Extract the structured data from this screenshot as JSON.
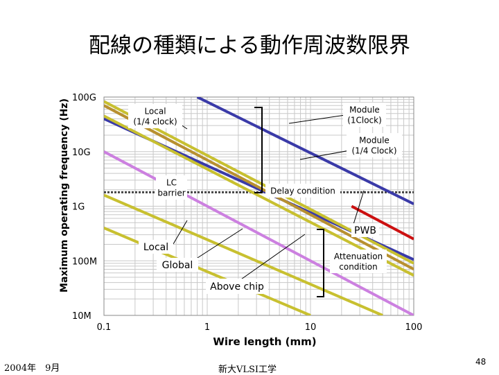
{
  "slide": {
    "title": "配線の種類による動作周波数限界",
    "footer_left": "2004年　9月",
    "footer_center": "新大VLSI工学",
    "page_number": "48"
  },
  "chart_data": {
    "type": "line",
    "title": "",
    "xlabel": "Wire length  (mm)",
    "ylabel": "Maximum operating frequency (Hz)",
    "x_scale": "log",
    "y_scale": "log",
    "xlim": [
      0.1,
      100
    ],
    "ylim": [
      10000000,
      100000000000
    ],
    "x_ticks": [
      {
        "value": 0.1,
        "label": "0.1"
      },
      {
        "value": 1,
        "label": "1"
      },
      {
        "value": 10,
        "label": "10"
      },
      {
        "value": 100,
        "label": "100"
      }
    ],
    "y_ticks": [
      {
        "value": 100000000000,
        "label": "100G"
      },
      {
        "value": 10000000000,
        "label": "10G"
      },
      {
        "value": 1000000000,
        "label": "1G"
      },
      {
        "value": 100000000,
        "label": "100M"
      },
      {
        "value": 10000000,
        "label": "10M"
      }
    ],
    "grid": true,
    "series": [
      {
        "color": "#3a3aa8",
        "points": [
          [
            0.8,
            100000000000
          ],
          [
            100,
            1100000000
          ]
        ]
      },
      {
        "color": "#3a3aa8",
        "points": [
          [
            0.1,
            40000000000
          ],
          [
            100,
            105000000
          ]
        ]
      },
      {
        "color": "#cc1010",
        "points": [
          [
            25,
            1000000000
          ],
          [
            100,
            250000000
          ]
        ]
      },
      {
        "color": "#c8c030",
        "points": [
          [
            0.1,
            83000000000
          ],
          [
            100,
            90000000
          ]
        ]
      },
      {
        "color": "#b89030",
        "points": [
          [
            0.1,
            70000000000
          ],
          [
            100,
            70000000
          ]
        ]
      },
      {
        "color": "#c8c030",
        "points": [
          [
            0.1,
            45000000000
          ],
          [
            100,
            54000000
          ]
        ]
      },
      {
        "color": "#cc80e0",
        "points": [
          [
            0.1,
            10000000000
          ],
          [
            100,
            10000000
          ]
        ]
      },
      {
        "color": "#c8c030",
        "points": [
          [
            0.1,
            1600000000
          ],
          [
            50,
            10000000
          ]
        ]
      },
      {
        "color": "#c8c030",
        "points": [
          [
            0.1,
            400000000
          ],
          [
            10,
            10000000
          ]
        ]
      }
    ],
    "reference_lines": [
      {
        "label": "LC barrier",
        "y": 1800000000,
        "color": "#444444"
      }
    ],
    "annotations": [
      {
        "text": "Module\n(1Clock)",
        "x": 40,
        "y": 80000000000
      },
      {
        "text": "Module\n(1/4 Clock)",
        "x": 40,
        "y": 20000000000
      },
      {
        "text": "Local\n(1/4 clock)",
        "x": 0.6,
        "y": 80000000000
      },
      {
        "text": "LC\nbarrier",
        "x": 0.6,
        "y": 2300000000
      },
      {
        "text": "Delay condition",
        "x": 10,
        "y": 2100000000
      },
      {
        "text": "PWB",
        "x": 50,
        "y": 550000000
      },
      {
        "text": "Local",
        "x": 0.5,
        "y": 220000000
      },
      {
        "text": "Global",
        "x": 0.7,
        "y": 110000000
      },
      {
        "text": "Attenuation\ncondition",
        "x": 40,
        "y": 120000000
      },
      {
        "text": "Above chip",
        "x": 3,
        "y": 42000000
      }
    ],
    "colors": {
      "background": "#ffffff",
      "grid": "#c8c8c8"
    }
  }
}
